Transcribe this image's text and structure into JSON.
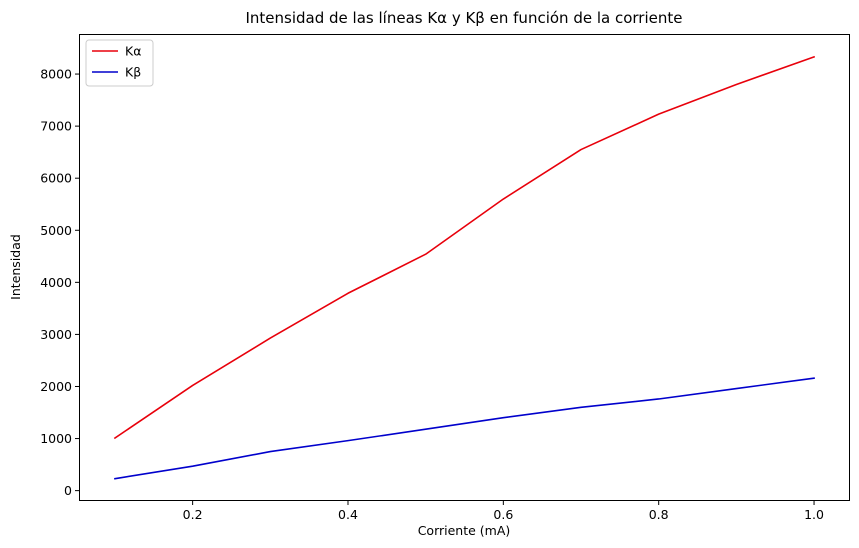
{
  "chart_data": {
    "type": "line",
    "title": "Intensidad de las líneas Kα y Kβ en función de la corriente",
    "xlabel": "Corriente (mA)",
    "ylabel": "Intensidad",
    "xlim": [
      0.055,
      1.045
    ],
    "ylim": [
      -180,
      8750
    ],
    "xticks": [
      0.2,
      0.4,
      0.6,
      0.8,
      1.0
    ],
    "xtick_labels": [
      "0.2",
      "0.4",
      "0.6",
      "0.8",
      "1.0"
    ],
    "yticks": [
      0,
      1000,
      2000,
      3000,
      4000,
      5000,
      6000,
      7000,
      8000
    ],
    "ytick_labels": [
      "0",
      "1000",
      "2000",
      "3000",
      "4000",
      "5000",
      "6000",
      "7000",
      "8000"
    ],
    "grid": false,
    "legend_position": "upper-left",
    "x": [
      0.1,
      0.2,
      0.3,
      0.4,
      0.5,
      0.6,
      0.7,
      0.8,
      0.9,
      1.0
    ],
    "series": [
      {
        "name": "Kα",
        "color": "#e8000b",
        "values": [
          1010,
          2020,
          2930,
          3790,
          4540,
          5600,
          6550,
          7230,
          7800,
          8330
        ]
      },
      {
        "name": "Kβ",
        "color": "#0000cc",
        "values": [
          230,
          470,
          750,
          960,
          1180,
          1400,
          1600,
          1760,
          1960,
          2160
        ]
      }
    ]
  }
}
